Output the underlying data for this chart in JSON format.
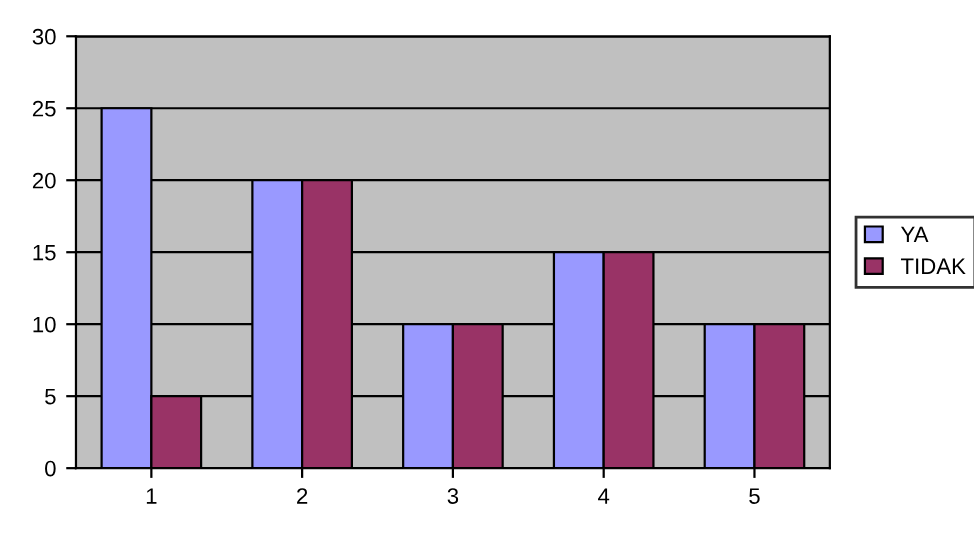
{
  "chart_data": {
    "type": "bar",
    "categories": [
      "1",
      "2",
      "3",
      "4",
      "5"
    ],
    "series": [
      {
        "name": "YA",
        "color": "#9999ff",
        "values": [
          25,
          20,
          10,
          15,
          10
        ]
      },
      {
        "name": "TIDAK",
        "color": "#993366",
        "values": [
          5,
          20,
          10,
          15,
          10
        ]
      }
    ],
    "ylim": [
      0,
      30
    ],
    "yticks": [
      0,
      5,
      10,
      15,
      20,
      25,
      30
    ],
    "grid": "y",
    "legend": "right"
  }
}
